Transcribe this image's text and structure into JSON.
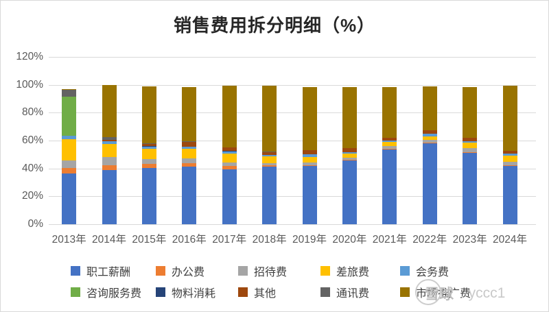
{
  "title": "销售费用拆分明细（%）",
  "watermark": {
    "logo_text": "雪球",
    "user_text": ": yccc1"
  },
  "colors": {
    "gridline": "#d9d9d9",
    "axis_text": "#595959",
    "title_text": "#262626",
    "legend_text": "#404040"
  },
  "chart_data": {
    "type": "bar",
    "stacked": true,
    "title": "销售费用拆分明细（%）",
    "xlabel": "",
    "ylabel": "",
    "ylim": [
      0,
      120
    ],
    "y_tick_step": 20,
    "y_tick_labels": [
      "0%",
      "20%",
      "40%",
      "60%",
      "80%",
      "100%",
      "120%"
    ],
    "grid": "horizontal",
    "legend_position": "bottom",
    "categories": [
      "2013年",
      "2014年",
      "2015年",
      "2016年",
      "2017年",
      "2018年",
      "2019年",
      "2020年",
      "2021年",
      "2022年",
      "2023年",
      "2024年"
    ],
    "series": [
      {
        "name": "职工薪酬",
        "color": "#4472C4",
        "values": [
          36.5,
          39,
          40.5,
          41.5,
          39.5,
          41.5,
          42,
          45.5,
          53.5,
          58,
          51,
          42
        ]
      },
      {
        "name": "办公费",
        "color": "#ED7D31",
        "values": [
          4,
          3.5,
          3,
          2.5,
          2.5,
          1,
          0.5,
          0.5,
          0.5,
          0.5,
          0.5,
          0.5
        ]
      },
      {
        "name": "招待费",
        "color": "#A5A5A5",
        "values": [
          5.5,
          5.5,
          3,
          3,
          2.5,
          1.5,
          2,
          1.5,
          2,
          2,
          3,
          2.5
        ]
      },
      {
        "name": "差旅费",
        "color": "#FFC000",
        "values": [
          15,
          9.5,
          7.5,
          7,
          6,
          4.5,
          3.5,
          3,
          3,
          2.5,
          4,
          4
        ]
      },
      {
        "name": "会务费",
        "color": "#5B9BD5",
        "values": [
          2.5,
          2,
          1.5,
          1.5,
          1.5,
          1,
          2,
          1,
          1,
          2,
          1,
          1.5
        ]
      },
      {
        "name": "咨询服务费",
        "color": "#70AD47",
        "values": [
          28,
          0,
          0,
          0,
          0,
          0,
          0,
          0,
          0,
          0,
          0,
          0
        ]
      },
      {
        "name": "物料消耗",
        "color": "#264478",
        "values": [
          0,
          0,
          0.5,
          0,
          0.5,
          0,
          0,
          0,
          0,
          0,
          0,
          0
        ]
      },
      {
        "name": "其他",
        "color": "#9E480E",
        "values": [
          0,
          1,
          1.5,
          3.5,
          2.5,
          2,
          3,
          3,
          2,
          2.5,
          2.5,
          2
        ]
      },
      {
        "name": "通讯费",
        "color": "#636363",
        "values": [
          5,
          2,
          0.5,
          0.5,
          0,
          0.5,
          0,
          0,
          0,
          0,
          0,
          0
        ]
      },
      {
        "name": "市场推广费",
        "color": "#997300",
        "values": [
          0.5,
          37.5,
          41,
          39,
          44.5,
          47.5,
          45.5,
          44,
          36.5,
          31.5,
          36.5,
          47
        ]
      }
    ]
  }
}
